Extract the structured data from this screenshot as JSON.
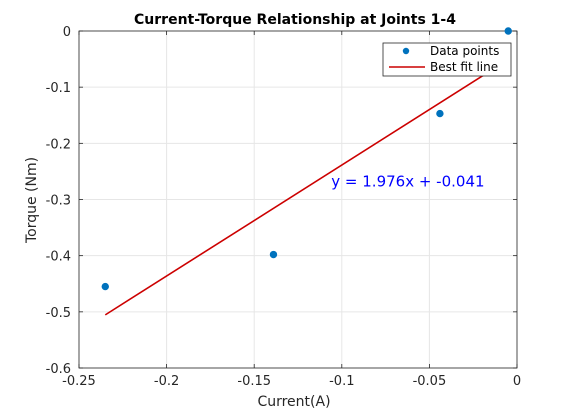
{
  "chart_data": {
    "type": "scatter",
    "title": "Current-Torque Relationship at Joints 1-4",
    "xlabel": "Current(A)",
    "ylabel": "Torque (Nm)",
    "xlim": [
      -0.25,
      0
    ],
    "ylim": [
      -0.6,
      0
    ],
    "xticks": [
      -0.25,
      -0.2,
      -0.15,
      -0.1,
      -0.05,
      0
    ],
    "xtick_labels": [
      "-0.25",
      "-0.2",
      "-0.15",
      "-0.1",
      "-0.05",
      "0"
    ],
    "yticks": [
      0,
      -0.1,
      -0.2,
      -0.3,
      -0.4,
      -0.5,
      -0.6
    ],
    "ytick_labels": [
      "0",
      "-0.1",
      "-0.2",
      "-0.3",
      "-0.4",
      "-0.5",
      "-0.6"
    ],
    "grid": true,
    "legend_position": "top-right",
    "series": [
      {
        "name": "Data points",
        "kind": "scatter",
        "color": "#0072BD",
        "x": [
          -0.235,
          -0.139,
          -0.044,
          -0.005
        ],
        "y": [
          -0.455,
          -0.398,
          -0.147,
          0.0
        ]
      },
      {
        "name": "Best fit line",
        "kind": "line",
        "color": "#CC0000",
        "x": [
          -0.235,
          -0.005
        ],
        "y": [
          -0.5054,
          -0.0509
        ]
      }
    ],
    "annotation": {
      "text": "y = 1.976x + -0.041",
      "color": "#0000FF",
      "x": -0.106,
      "y": -0.268
    }
  }
}
